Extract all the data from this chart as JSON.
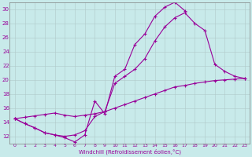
{
  "xlabel": "Windchill (Refroidissement éolien,°C)",
  "bg_color": "#c8eaea",
  "line_color": "#990099",
  "grid_color": "#b0c8c8",
  "xlim": [
    -0.5,
    23.5
  ],
  "ylim": [
    11,
    31
  ],
  "yticks": [
    12,
    14,
    16,
    18,
    20,
    22,
    24,
    26,
    28,
    30
  ],
  "xticks": [
    0,
    1,
    2,
    3,
    4,
    5,
    6,
    7,
    8,
    9,
    10,
    11,
    12,
    13,
    14,
    15,
    16,
    17,
    18,
    19,
    20,
    21,
    22,
    23
  ],
  "series": [
    {
      "x": [
        0,
        1,
        2,
        3,
        4,
        5,
        6,
        7,
        8,
        9,
        10,
        11,
        12,
        13,
        14,
        15,
        16,
        17
      ],
      "y": [
        14.5,
        13.8,
        13.2,
        12.5,
        12.2,
        11.8,
        11.2,
        12.2,
        17.0,
        15.2,
        20.5,
        21.5,
        25.0,
        26.5,
        29.0,
        30.3,
        31.0,
        29.8
      ]
    },
    {
      "x": [
        0,
        1,
        2,
        3,
        4,
        5,
        6,
        7,
        8,
        9,
        10,
        11,
        12,
        13,
        14,
        15,
        16,
        17,
        18,
        19,
        20,
        21,
        22,
        23
      ],
      "y": [
        14.5,
        13.8,
        13.2,
        12.5,
        12.2,
        12.0,
        12.2,
        12.8,
        14.8,
        15.5,
        19.5,
        20.5,
        21.5,
        23.0,
        25.5,
        27.5,
        28.8,
        29.5,
        28.0,
        27.0,
        22.2,
        21.2,
        20.5,
        20.2
      ]
    },
    {
      "x": [
        0,
        1,
        2,
        3,
        4,
        5,
        6,
        7,
        8,
        9,
        10,
        11,
        12,
        13,
        14,
        15,
        16,
        17,
        18,
        19,
        20,
        21,
        22,
        23
      ],
      "y": [
        14.5,
        14.7,
        14.9,
        15.1,
        15.3,
        15.0,
        14.8,
        15.0,
        15.2,
        15.5,
        16.0,
        16.5,
        17.0,
        17.5,
        18.0,
        18.5,
        19.0,
        19.2,
        19.5,
        19.7,
        19.9,
        20.0,
        20.1,
        20.2
      ]
    }
  ]
}
